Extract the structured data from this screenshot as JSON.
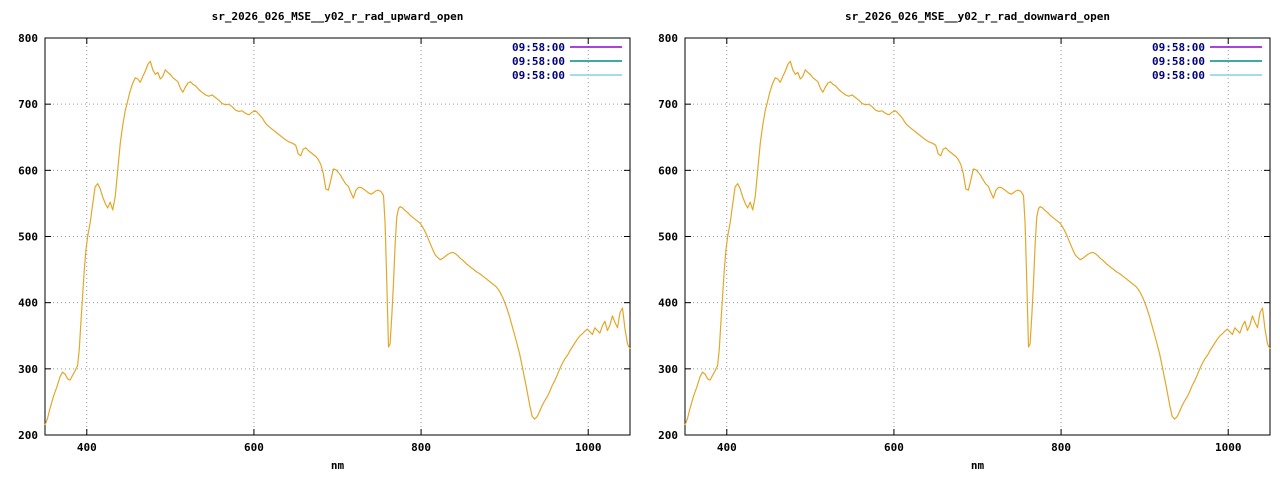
{
  "chart_data": {
    "type": "line",
    "xlabel": "nm",
    "ylabel": "",
    "xlim": [
      350,
      1050
    ],
    "ylim": [
      200,
      800
    ],
    "xticks": [
      400,
      600,
      800,
      1000
    ],
    "yticks": [
      200,
      300,
      400,
      500,
      600,
      700,
      800
    ],
    "grid": true,
    "legend_position": "top-right",
    "curve_color": "#e3a72c",
    "legend_text_color": "#000080",
    "legend_entries": [
      {
        "label": "09:58:00",
        "color": "#9400d3"
      },
      {
        "label": "09:58:00",
        "color": "#008b8b"
      },
      {
        "label": "09:58:00",
        "color": "#87ceeb"
      }
    ],
    "charts": [
      {
        "title": "sr_2026_026_MSE__y02_r_rad_upward_open"
      },
      {
        "title": "sr_2026_026_MSE__y02_r_rad_downward_open"
      }
    ],
    "points": [
      [
        350,
        215
      ],
      [
        353,
        225
      ],
      [
        356,
        240
      ],
      [
        360,
        258
      ],
      [
        364,
        272
      ],
      [
        368,
        288
      ],
      [
        371,
        295
      ],
      [
        374,
        292
      ],
      [
        377,
        285
      ],
      [
        380,
        283
      ],
      [
        383,
        290
      ],
      [
        386,
        297
      ],
      [
        389,
        305
      ],
      [
        391,
        330
      ],
      [
        393,
        370
      ],
      [
        395,
        410
      ],
      [
        397,
        450
      ],
      [
        399,
        480
      ],
      [
        401,
        500
      ],
      [
        404,
        520
      ],
      [
        407,
        548
      ],
      [
        410,
        575
      ],
      [
        413,
        580
      ],
      [
        416,
        572
      ],
      [
        419,
        560
      ],
      [
        422,
        550
      ],
      [
        425,
        543
      ],
      [
        428,
        552
      ],
      [
        431,
        540
      ],
      [
        434,
        560
      ],
      [
        437,
        600
      ],
      [
        440,
        640
      ],
      [
        443,
        668
      ],
      [
        446,
        690
      ],
      [
        449,
        705
      ],
      [
        452,
        720
      ],
      [
        455,
        732
      ],
      [
        458,
        740
      ],
      [
        461,
        738
      ],
      [
        464,
        733
      ],
      [
        467,
        742
      ],
      [
        470,
        750
      ],
      [
        473,
        760
      ],
      [
        476,
        765
      ],
      [
        479,
        752
      ],
      [
        482,
        745
      ],
      [
        485,
        748
      ],
      [
        488,
        738
      ],
      [
        491,
        742
      ],
      [
        494,
        752
      ],
      [
        497,
        748
      ],
      [
        500,
        745
      ],
      [
        503,
        740
      ],
      [
        506,
        737
      ],
      [
        509,
        734
      ],
      [
        512,
        724
      ],
      [
        515,
        718
      ],
      [
        518,
        726
      ],
      [
        521,
        732
      ],
      [
        524,
        734
      ],
      [
        527,
        730
      ],
      [
        530,
        728
      ],
      [
        534,
        722
      ],
      [
        538,
        718
      ],
      [
        542,
        714
      ],
      [
        546,
        712
      ],
      [
        550,
        714
      ],
      [
        554,
        710
      ],
      [
        558,
        706
      ],
      [
        562,
        701
      ],
      [
        566,
        699
      ],
      [
        570,
        700
      ],
      [
        574,
        696
      ],
      [
        578,
        691
      ],
      [
        582,
        689
      ],
      [
        586,
        690
      ],
      [
        590,
        686
      ],
      [
        594,
        684
      ],
      [
        598,
        688
      ],
      [
        602,
        690
      ],
      [
        606,
        685
      ],
      [
        610,
        679
      ],
      [
        614,
        671
      ],
      [
        618,
        666
      ],
      [
        622,
        662
      ],
      [
        626,
        658
      ],
      [
        630,
        654
      ],
      [
        634,
        650
      ],
      [
        638,
        646
      ],
      [
        642,
        643
      ],
      [
        646,
        641
      ],
      [
        650,
        638
      ],
      [
        653,
        625
      ],
      [
        656,
        622
      ],
      [
        659,
        632
      ],
      [
        662,
        634
      ],
      [
        665,
        630
      ],
      [
        668,
        627
      ],
      [
        671,
        624
      ],
      [
        674,
        621
      ],
      [
        677,
        616
      ],
      [
        680,
        609
      ],
      [
        683,
        595
      ],
      [
        686,
        572
      ],
      [
        689,
        570
      ],
      [
        692,
        585
      ],
      [
        695,
        602
      ],
      [
        698,
        601
      ],
      [
        701,
        597
      ],
      [
        704,
        592
      ],
      [
        707,
        585
      ],
      [
        710,
        579
      ],
      [
        713,
        576
      ],
      [
        716,
        566
      ],
      [
        719,
        558
      ],
      [
        722,
        570
      ],
      [
        725,
        574
      ],
      [
        728,
        574
      ],
      [
        731,
        572
      ],
      [
        734,
        569
      ],
      [
        737,
        566
      ],
      [
        740,
        564
      ],
      [
        743,
        566
      ],
      [
        746,
        569
      ],
      [
        749,
        570
      ],
      [
        752,
        568
      ],
      [
        755,
        562
      ],
      [
        757,
        520
      ],
      [
        759,
        430
      ],
      [
        761,
        333
      ],
      [
        763,
        338
      ],
      [
        765,
        380
      ],
      [
        767,
        430
      ],
      [
        769,
        490
      ],
      [
        771,
        530
      ],
      [
        773,
        542
      ],
      [
        775,
        545
      ],
      [
        778,
        543
      ],
      [
        781,
        539
      ],
      [
        784,
        536
      ],
      [
        787,
        532
      ],
      [
        790,
        529
      ],
      [
        793,
        526
      ],
      [
        796,
        523
      ],
      [
        799,
        520
      ],
      [
        802,
        514
      ],
      [
        805,
        507
      ],
      [
        808,
        498
      ],
      [
        811,
        489
      ],
      [
        814,
        480
      ],
      [
        817,
        472
      ],
      [
        820,
        468
      ],
      [
        823,
        465
      ],
      [
        826,
        467
      ],
      [
        829,
        470
      ],
      [
        832,
        473
      ],
      [
        835,
        475
      ],
      [
        838,
        476
      ],
      [
        841,
        474
      ],
      [
        844,
        471
      ],
      [
        847,
        467
      ],
      [
        850,
        464
      ],
      [
        854,
        459
      ],
      [
        858,
        455
      ],
      [
        862,
        451
      ],
      [
        866,
        447
      ],
      [
        870,
        444
      ],
      [
        874,
        440
      ],
      [
        878,
        436
      ],
      [
        882,
        432
      ],
      [
        886,
        428
      ],
      [
        890,
        424
      ],
      [
        894,
        417
      ],
      [
        898,
        407
      ],
      [
        902,
        394
      ],
      [
        906,
        378
      ],
      [
        910,
        360
      ],
      [
        914,
        342
      ],
      [
        918,
        322
      ],
      [
        922,
        298
      ],
      [
        926,
        272
      ],
      [
        930,
        245
      ],
      [
        933,
        228
      ],
      [
        936,
        224
      ],
      [
        939,
        228
      ],
      [
        942,
        236
      ],
      [
        945,
        245
      ],
      [
        948,
        252
      ],
      [
        951,
        258
      ],
      [
        954,
        266
      ],
      [
        957,
        275
      ],
      [
        960,
        282
      ],
      [
        963,
        291
      ],
      [
        966,
        300
      ],
      [
        969,
        308
      ],
      [
        972,
        315
      ],
      [
        975,
        320
      ],
      [
        978,
        327
      ],
      [
        981,
        333
      ],
      [
        984,
        339
      ],
      [
        987,
        345
      ],
      [
        990,
        350
      ],
      [
        993,
        353
      ],
      [
        996,
        357
      ],
      [
        999,
        360
      ],
      [
        1002,
        356
      ],
      [
        1005,
        352
      ],
      [
        1008,
        362
      ],
      [
        1011,
        358
      ],
      [
        1014,
        354
      ],
      [
        1017,
        365
      ],
      [
        1020,
        372
      ],
      [
        1023,
        358
      ],
      [
        1026,
        366
      ],
      [
        1029,
        380
      ],
      [
        1032,
        370
      ],
      [
        1035,
        362
      ],
      [
        1038,
        385
      ],
      [
        1041,
        392
      ],
      [
        1044,
        360
      ],
      [
        1047,
        338
      ],
      [
        1050,
        330
      ]
    ]
  }
}
